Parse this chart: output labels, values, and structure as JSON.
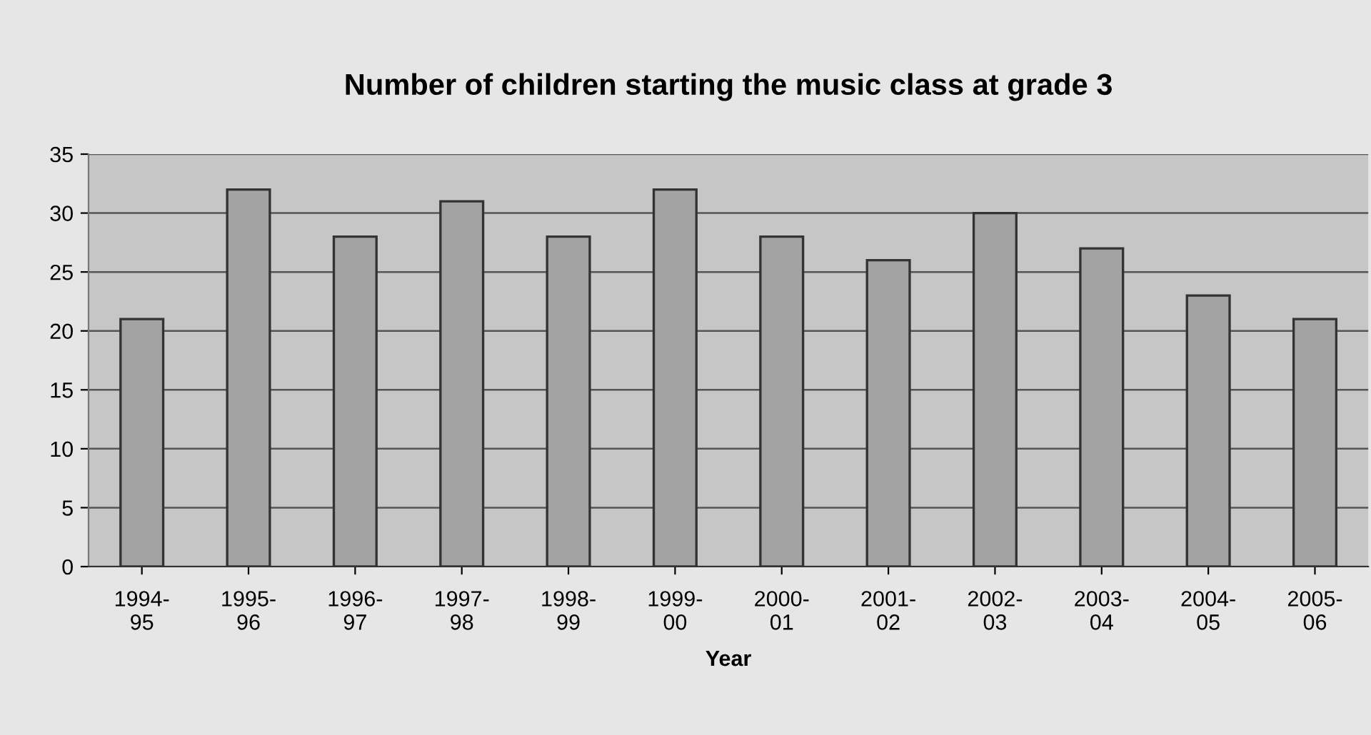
{
  "chart_data": {
    "type": "bar",
    "title": "Number of children starting the music class at grade 3",
    "xlabel": "Year",
    "categories": [
      "1994-\n95",
      "1995-\n96",
      "1996-\n97",
      "1997-\n98",
      "1998-\n99",
      "1999-\n00",
      "2000-\n01",
      "2001-\n02",
      "2002-\n03",
      "2003-\n04",
      "2004-\n05",
      "2005-\n06"
    ],
    "values": [
      21,
      32,
      28,
      31,
      28,
      32,
      28,
      26,
      30,
      27,
      23,
      21
    ],
    "color": "#a3a3a3",
    "ylim": [
      0,
      35
    ],
    "yticks": [
      0,
      5,
      10,
      15,
      20,
      25,
      30,
      35
    ],
    "grid": "y",
    "legend": false
  }
}
